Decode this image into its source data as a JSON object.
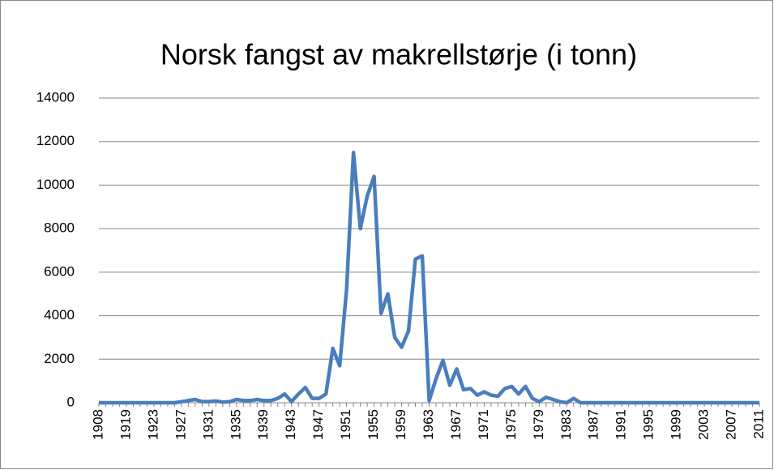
{
  "chart_data": {
    "type": "line",
    "title": "Norsk fangst av makrellstørje (i tonn)",
    "categories": [
      "1908",
      null,
      null,
      null,
      "1919",
      null,
      null,
      null,
      "1923",
      null,
      null,
      null,
      "1927",
      null,
      null,
      null,
      "1931",
      null,
      null,
      null,
      "1935",
      null,
      null,
      null,
      "1939",
      null,
      null,
      null,
      "1943",
      null,
      null,
      null,
      "1947",
      null,
      null,
      null,
      "1951",
      null,
      null,
      null,
      "1955",
      null,
      null,
      null,
      "1959",
      null,
      null,
      null,
      "1963",
      null,
      null,
      null,
      "1967",
      null,
      null,
      null,
      "1971",
      null,
      null,
      null,
      "1975",
      null,
      null,
      null,
      "1979",
      null,
      null,
      null,
      "1983",
      null,
      null,
      null,
      "1987",
      null,
      null,
      null,
      "1991",
      null,
      null,
      null,
      "1995",
      null,
      null,
      null,
      "1999",
      null,
      null,
      null,
      "2003",
      null,
      null,
      null,
      "2007",
      null,
      null,
      null,
      "2011"
    ],
    "series": [
      {
        "color": "#4a7ebb",
        "values": [
          0,
          0,
          0,
          0,
          0,
          0,
          0,
          0,
          0,
          0,
          0,
          0,
          50,
          100,
          150,
          50,
          50,
          80,
          30,
          50,
          150,
          100,
          100,
          150,
          100,
          100,
          200,
          400,
          50,
          400,
          700,
          200,
          200,
          400,
          2500,
          1700,
          5200,
          11500,
          8000,
          9500,
          10400,
          4100,
          5000,
          3000,
          2550,
          3300,
          6600,
          6750,
          100,
          1100,
          1950,
          800,
          1550,
          600,
          650,
          350,
          500,
          350,
          300,
          650,
          750,
          400,
          750,
          200,
          50,
          250,
          150,
          50,
          0,
          200,
          0,
          0,
          0,
          0,
          0,
          0,
          0,
          0,
          0,
          0,
          0,
          0,
          0,
          0,
          0,
          0,
          0,
          0,
          0,
          0,
          0,
          0,
          0,
          0,
          0,
          0,
          0
        ]
      }
    ],
    "ylim": [
      0,
      14000
    ],
    "yticks": [
      0,
      2000,
      4000,
      6000,
      8000,
      10000,
      12000,
      14000
    ],
    "grid": true
  }
}
